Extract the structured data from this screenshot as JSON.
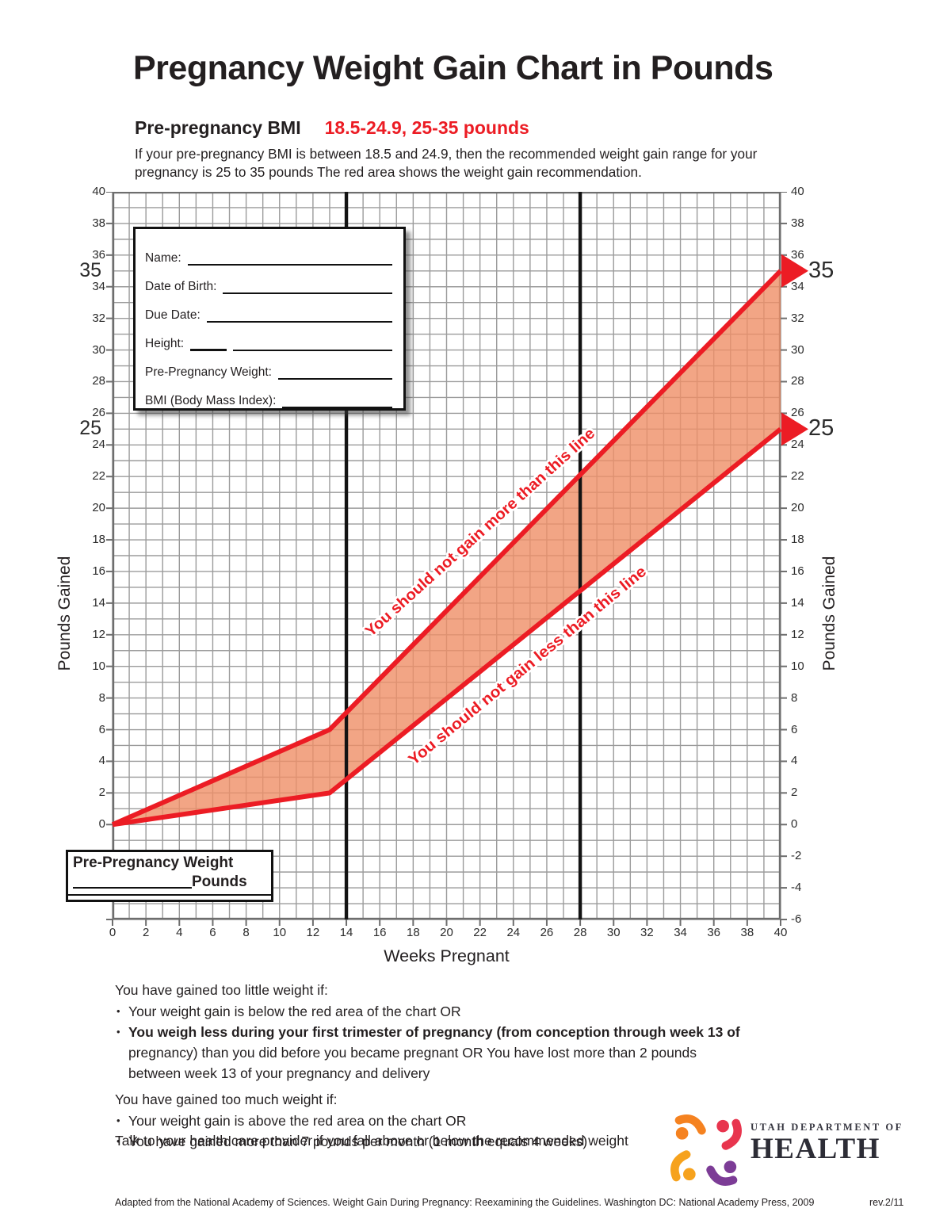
{
  "page": {
    "title": "Pregnancy Weight Gain Chart in Pounds",
    "subtitle_label": "Pre-pregnancy BMI",
    "subtitle_value": "18.5-24.9, 25-35 pounds",
    "description": "If your pre-pregnancy BMI is between 18.5 and 24.9, then the recommended weight gain range for your pregnancy is 25 to 35 pounds The red area shows the weight gain recommendation."
  },
  "theme": {
    "ink": "#231f20",
    "accent_red": "#ec1c24",
    "grid_gray": "#9b9b9b",
    "grid_border": "#6e6e6e",
    "marker_black": "#131313"
  },
  "form_box": {
    "fields": [
      "Name:",
      "Date of Birth:",
      "Due Date:",
      "Height:",
      "Pre-Pregnancy Weight:",
      "BMI (Body Mass Index):"
    ]
  },
  "weight_box": {
    "title": "Pre-Pregnancy Weight",
    "unit": "Pounds"
  },
  "chart_data": {
    "type": "area",
    "xlabel": "Weeks Pregnant",
    "ylabel_left": "Pounds Gained",
    "ylabel_right": "Pounds Gained",
    "xlim": [
      0,
      40
    ],
    "x_tick_step": 2,
    "ylim_right": [
      -6,
      40
    ],
    "ylim_left_labels": [
      0,
      40
    ],
    "y_tick_step": 2,
    "grid": true,
    "trimester_marker_weeks": [
      14,
      28
    ],
    "highlighted_ticks": [
      35,
      25
    ],
    "line_color": "#ec1c24",
    "band_fill": "#ef8e66",
    "series": [
      {
        "name": "upper-limit",
        "x": [
          0,
          13,
          40
        ],
        "y": [
          0,
          6,
          35
        ],
        "end_value": 35,
        "label": "You should not gain more than this line"
      },
      {
        "name": "lower-limit",
        "x": [
          0,
          13,
          40
        ],
        "y": [
          0,
          2,
          25
        ],
        "end_value": 25,
        "label": "You should not gain less than this line"
      }
    ]
  },
  "notes": {
    "too_little": {
      "heading": "You have gained too little weight if:",
      "bullet1": "Your weight gain is below the red area of the chart OR",
      "bullet2_bold": "You weigh less during your first trimester of pregnancy (from conception through week 13 of",
      "bullet2_rest": " pregnancy) than you did before you became pregnant OR You have lost more than 2 pounds between week 13 of your pregnancy and delivery"
    },
    "too_much": {
      "heading": "You have gained too much weight if:",
      "bullet1": "Your weight gain is above the red area on the chart OR",
      "bullet2": "You have gained more than 7 pounds per month (1 month equals 4 weeks)"
    },
    "closing": "Talk to your health care provider if you fall above or below the recommended weight"
  },
  "logo": {
    "line1": "UTAH DEPARTMENT OF",
    "line2": "HEALTH",
    "colors": [
      "#f58220",
      "#e8354e",
      "#7c3c96",
      "#f6a21d"
    ]
  },
  "footer": {
    "citation": "Adapted from the National Academy of Sciences. Weight Gain During Pregnancy: Reexamining the Guidelines. Washington DC: National Academy Press, 2009",
    "revision": "rev.2/11"
  }
}
